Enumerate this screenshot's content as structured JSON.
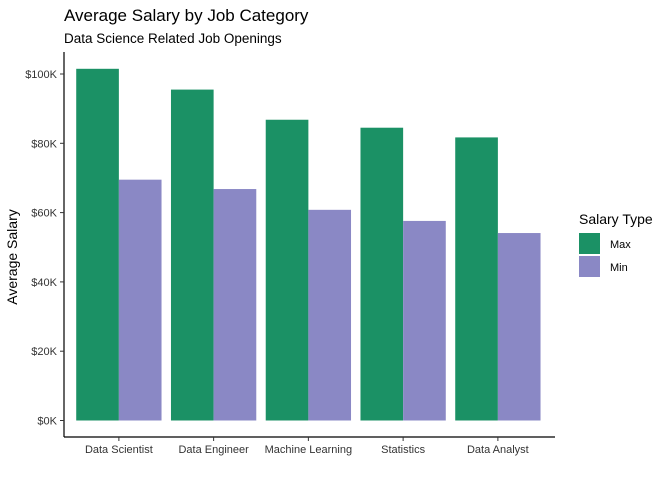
{
  "chart_data": {
    "type": "bar",
    "title": "Average Salary by Job Category",
    "subtitle": "Data Science Related Job Openings",
    "xlabel": "",
    "ylabel": "Average Salary",
    "categories": [
      "Data Scientist",
      "Data Engineer",
      "Machine Learning",
      "Statistics",
      "Data Analyst"
    ],
    "series": [
      {
        "name": "Max",
        "color": "#1b9165",
        "values": [
          101500,
          95500,
          86800,
          84500,
          81700
        ]
      },
      {
        "name": "Min",
        "color": "#8a88c5",
        "values": [
          69500,
          66800,
          60800,
          57600,
          54100
        ]
      }
    ],
    "ylim": [
      0,
      100000
    ],
    "yticks": [
      0,
      20000,
      40000,
      60000,
      80000,
      100000
    ],
    "ytick_labels": [
      "$0K",
      "$20K",
      "$40K",
      "$60K",
      "$80K",
      "$100K"
    ],
    "legend": {
      "title": "Salary Type",
      "placement": "right"
    },
    "grid": false
  }
}
